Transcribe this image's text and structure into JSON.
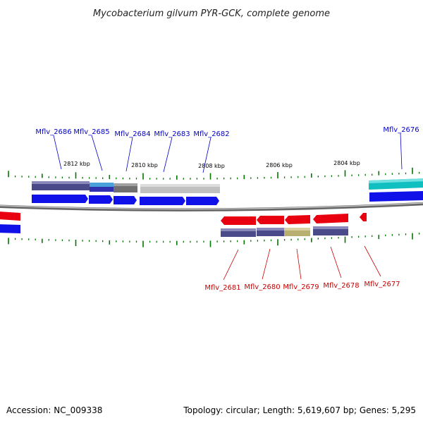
{
  "title": "Mycobacterium gilvum PYR-GCK, complete genome",
  "footer": {
    "accession": "Accession: NC_009338",
    "summary": "Topology: circular; Length: 5,619,607 bp; Genes: 5,295"
  },
  "kbp_labels": [
    "2812 kbp",
    "2810 kbp",
    "2808 kbp",
    "2806 kbp",
    "2804 kbp"
  ],
  "forward_genes": [
    "Mflv_2686",
    "Mflv_2685",
    "Mflv_2684",
    "Mflv_2683",
    "Mflv_2682",
    "Mflv_2676"
  ],
  "reverse_genes": [
    "Mflv_2681",
    "Mflv_2680",
    "Mflv_2679",
    "Mflv_2678",
    "Mflv_2677"
  ],
  "colors": {
    "forward_gene": "#1010e8",
    "reverse_gene": "#e80010",
    "forward_label": "#0000cc",
    "reverse_label": "#cc0000",
    "backbone": "#888888",
    "tick": "#007700",
    "cog_navy": "#4a4a8a",
    "cog_light_blue": "#4aa0d8",
    "cog_gray": "#707070",
    "cog_light_gray": "#c0c0c0",
    "cog_khaki": "#b8b070",
    "cog_cyan": "#10c0c0"
  }
}
